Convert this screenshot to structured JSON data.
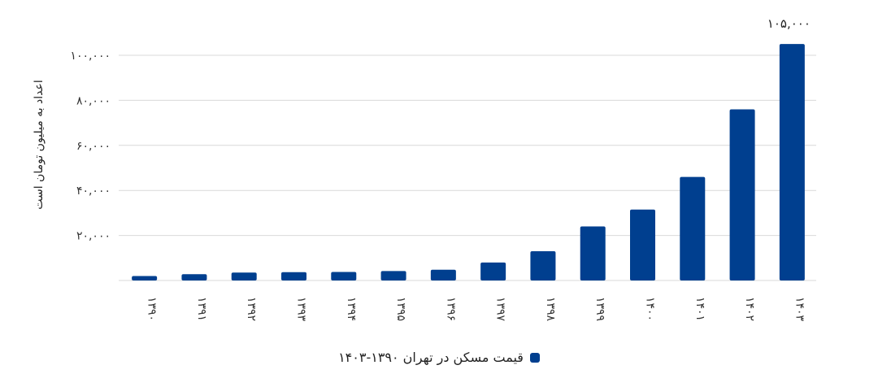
{
  "chart_data": {
    "type": "bar",
    "categories": [
      "۱۳۹۰",
      "۱۳۹۱",
      "۱۳۹۲",
      "۱۳۹۳",
      "۱۳۹۴",
      "۱۳۹۵",
      "۱۳۹۶",
      "۱۳۹۷",
      "۱۳۹۸",
      "۱۳۹۹",
      "۱۴۰۰",
      "۱۴۰۱",
      "۱۴۰۲",
      "۱۴۰۳"
    ],
    "series": [
      {
        "name": "قیمت مسکن در تهران ۱۳۹۰-۱۴۰۳",
        "values": [
          2000,
          2800,
          3500,
          3700,
          3800,
          4200,
          4800,
          8000,
          13000,
          24000,
          31500,
          46000,
          76000,
          105000
        ]
      }
    ],
    "ylabel": "اعداد به میلیون تومان است",
    "ylim": [
      0,
      100000
    ],
    "yticks": [
      {
        "value": 20000,
        "label": "۲۰,۰۰۰"
      },
      {
        "value": 40000,
        "label": "۴۰,۰۰۰"
      },
      {
        "value": 60000,
        "label": "۶۰,۰۰۰"
      },
      {
        "value": 80000,
        "label": "۸۰,۰۰۰"
      },
      {
        "value": 100000,
        "label": "۱۰۰,۰۰۰"
      }
    ],
    "data_labels": [
      {
        "index": 13,
        "label": "۱۰۵,۰۰۰"
      }
    ],
    "grid": true,
    "legend_position": "bottom-center",
    "color": "#003f8f"
  }
}
